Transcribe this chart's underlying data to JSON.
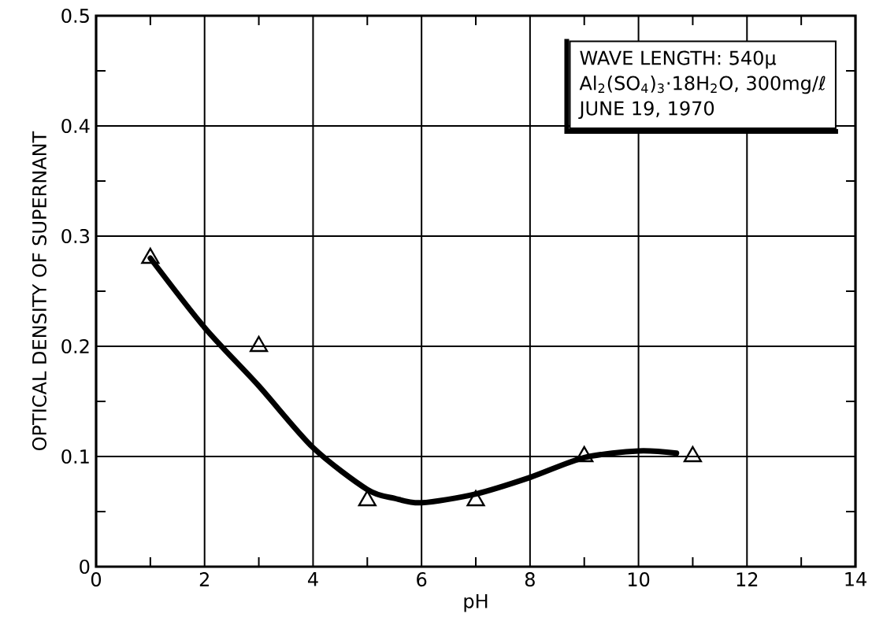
{
  "chart_data": {
    "type": "scatter",
    "xlabel": "pH",
    "ylabel": "OPTICAL DENSITY OF SUPERNANT",
    "annotations": [
      "WAVE LENGTH: 540μ",
      "Al$_{2}$(SO$_{4}$)$_{3}$·18H$_{2}$O, 300mg/ℓ",
      "JUNE 19, 1970"
    ],
    "series": [
      {
        "color": "#000000",
        "marker": "triangle",
        "x": [
          1,
          3,
          5,
          7,
          9,
          11
        ],
        "values": [
          0.28,
          0.2,
          0.06,
          0.06,
          0.1,
          0.1
        ]
      },
      {
        "type": "line",
        "color": "#000000",
        "marker": "none",
        "line_style": "solid",
        "x": [
          1,
          2,
          3,
          4,
          5,
          5.5,
          6,
          7,
          8,
          9,
          10,
          10.7
        ],
        "values": [
          0.28,
          0.217,
          0.164,
          0.108,
          0.07,
          0.062,
          0.058,
          0.066,
          0.081,
          0.099,
          0.105,
          0.103
        ]
      }
    ],
    "xlim": [
      0,
      14
    ],
    "xticks": [
      0,
      2,
      4,
      6,
      8,
      10,
      12,
      14
    ],
    "ylim": [
      0,
      0.5
    ],
    "yticks": [
      0,
      0.1,
      0.2,
      0.3,
      0.4,
      0.5
    ],
    "grid": true
  }
}
